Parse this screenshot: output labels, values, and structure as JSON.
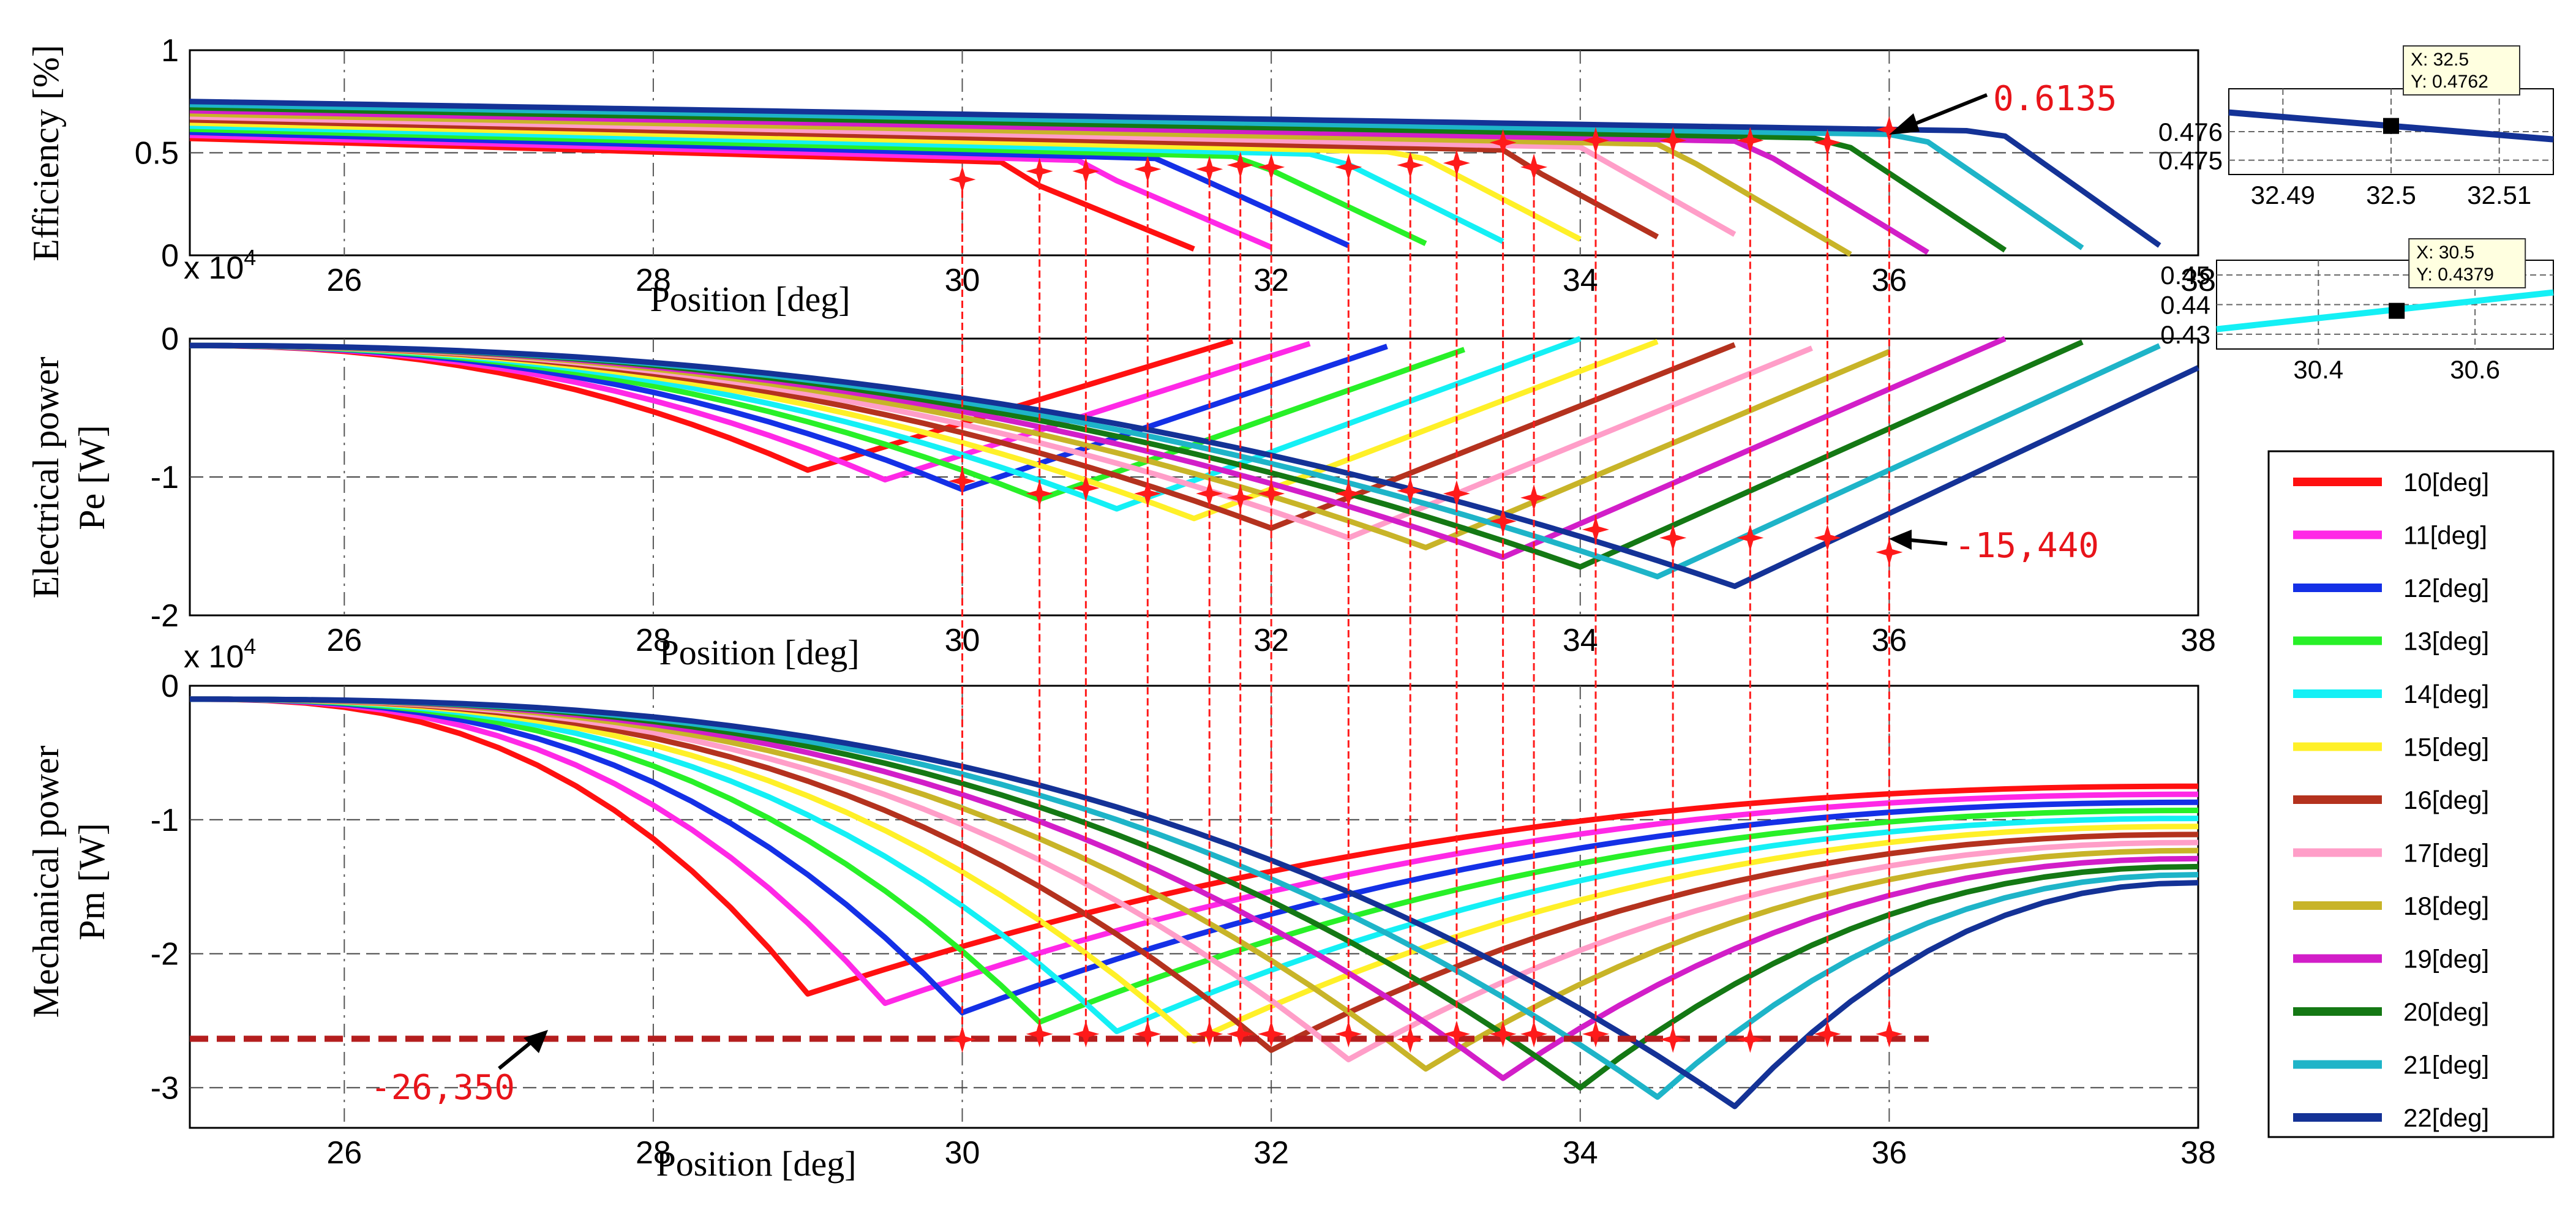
{
  "chart_data": {
    "type": "line",
    "common": {
      "xlabel": "Position [deg]",
      "xlim": [
        25,
        38
      ],
      "xticks": [
        26,
        28,
        30,
        32,
        34,
        36,
        38
      ]
    },
    "series_legend": [
      {
        "name": "10[deg]",
        "color": "#ff1010"
      },
      {
        "name": "11[deg]",
        "color": "#ff28e6"
      },
      {
        "name": "12[deg]",
        "color": "#1430e6"
      },
      {
        "name": "13[deg]",
        "color": "#28f028"
      },
      {
        "name": "14[deg]",
        "color": "#14f0f5"
      },
      {
        "name": "15[deg]",
        "color": "#fff028"
      },
      {
        "name": "16[deg]",
        "color": "#b4321e"
      },
      {
        "name": "17[deg]",
        "color": "#ff9ec8"
      },
      {
        "name": "18[deg]",
        "color": "#c8b428"
      },
      {
        "name": "19[deg]",
        "color": "#d21ec8"
      },
      {
        "name": "20[deg]",
        "color": "#147814"
      },
      {
        "name": "21[deg]",
        "color": "#1eb4c8"
      },
      {
        "name": "22[deg]",
        "color": "#143296"
      }
    ],
    "optimal_points": {
      "x": [
        30,
        30.5,
        30.8,
        31.2,
        31.6,
        31.8,
        32,
        32.5,
        32.9,
        33.2,
        33.5,
        33.7,
        34.1,
        34.6,
        35.1,
        35.6,
        36
      ]
    },
    "panels": [
      {
        "id": "efficiency",
        "ylabel": "Efficiency [%]",
        "ylim": [
          0,
          1
        ],
        "yticks": [
          "1",
          "0.5",
          "0"
        ],
        "ref_line": 0.5,
        "optimal_y": [
          0.37,
          0.41,
          0.41,
          0.42,
          0.42,
          0.44,
          0.43,
          0.43,
          0.44,
          0.45,
          0.55,
          0.43,
          0.56,
          0.56,
          0.56,
          0.55,
          0.6135
        ],
        "annotation": "0.6135"
      },
      {
        "id": "electrical",
        "exponent": "x 10",
        "exponent_power": "4",
        "ylabel": "Electrical power",
        "ylabel2": "Pe  [W]",
        "ylim": [
          -2,
          0
        ],
        "yticks": [
          "0",
          "-1",
          "-2"
        ],
        "optimal_y": [
          -1.03,
          -1.12,
          -1.08,
          -1.12,
          -1.12,
          -1.15,
          -1.12,
          -1.12,
          -1.1,
          -1.12,
          -1.32,
          -1.15,
          -1.38,
          -1.44,
          -1.44,
          -1.44,
          -1.544
        ],
        "annotation": "-15,440"
      },
      {
        "id": "mechanical",
        "exponent": "x 10",
        "exponent_power": "4",
        "ylabel": "Mechanical power",
        "ylabel2": "Pm [W]",
        "ylim": [
          -3.3,
          0
        ],
        "yticks": [
          "0",
          "-1",
          "-2",
          "-3"
        ],
        "optimal_y": [
          -2.64,
          -2.6,
          -2.6,
          -2.6,
          -2.6,
          -2.6,
          -2.6,
          -2.6,
          -2.64,
          -2.6,
          -2.6,
          -2.6,
          -2.6,
          -2.64,
          -2.64,
          -2.6,
          -2.6
        ],
        "hline": -2.635,
        "annotation": "-26,350"
      }
    ],
    "datatips": [
      {
        "x_label": "X: 32.5",
        "y_label": "Y: 0.4762",
        "xlim": [
          32.485,
          32.515
        ],
        "ylim": [
          0.4745,
          0.4775
        ],
        "xticks": [
          "32.49",
          "32.5",
          "32.51"
        ],
        "yticks": [
          "0.476",
          "0.475"
        ],
        "x": 32.5,
        "y": 0.4762,
        "series_color": "#143296"
      },
      {
        "x_label": "X: 30.5",
        "y_label": "Y: 0.4379",
        "xlim": [
          30.27,
          30.7
        ],
        "ylim": [
          0.425,
          0.455
        ],
        "xticks": [
          "30.4",
          "30.6"
        ],
        "yticks": [
          "0.45",
          "0.44",
          "0.43"
        ],
        "x": 30.5,
        "y": 0.4379,
        "series_color": "#14f0f5"
      }
    ]
  }
}
